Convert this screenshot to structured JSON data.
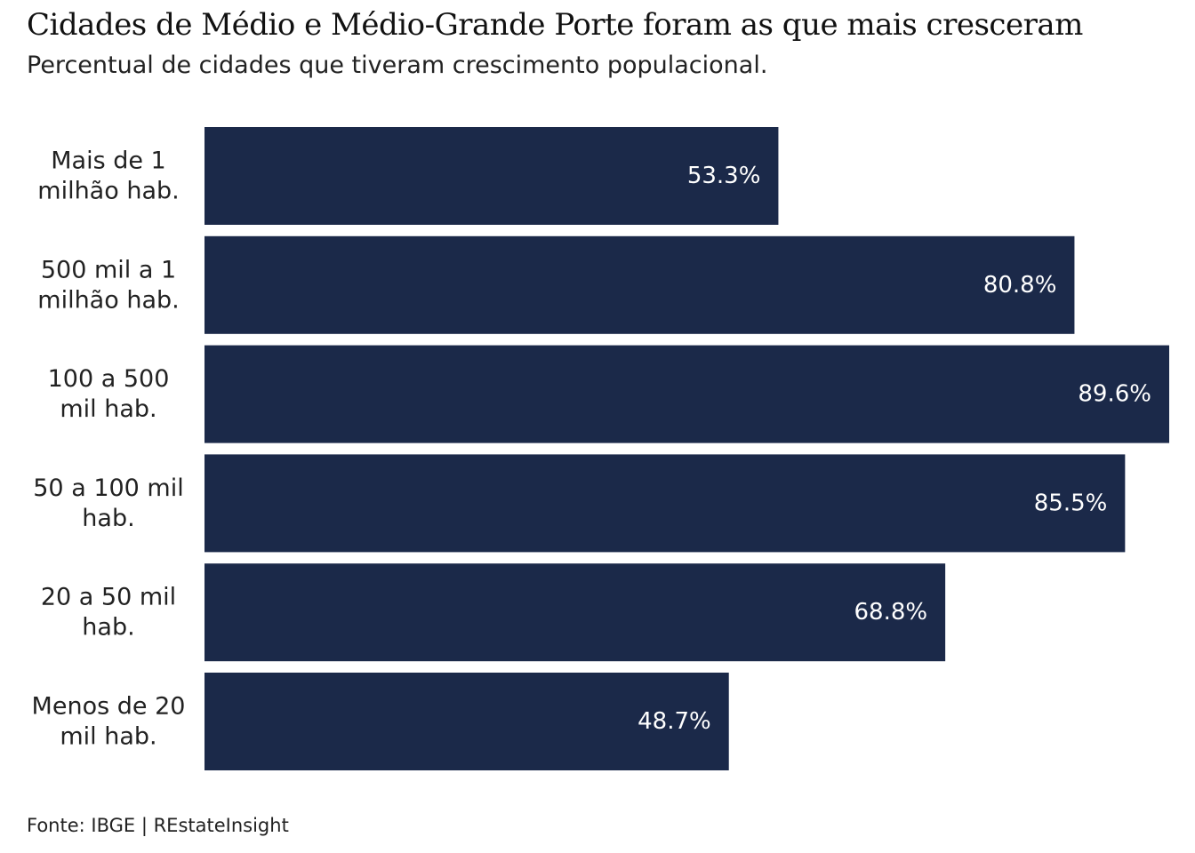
{
  "chart_data": {
    "type": "bar",
    "orientation": "horizontal",
    "title": "Cidades de Médio e Médio-Grande Porte foram as que mais cresceram",
    "subtitle": "Percentual de cidades que tiveram crescimento populacional.",
    "categories": [
      [
        "Mais de 1",
        "milhão hab."
      ],
      [
        "500 mil a 1",
        "milhão hab."
      ],
      [
        "100 a 500",
        "mil hab."
      ],
      [
        "50 a 100 mil",
        "hab."
      ],
      [
        "20 a 50 mil",
        "hab."
      ],
      [
        "Menos de 20",
        "mil hab."
      ]
    ],
    "values": [
      53.3,
      80.8,
      89.6,
      85.5,
      68.8,
      48.7
    ],
    "value_labels": [
      "53.3%",
      "80.8%",
      "89.6%",
      "85.5%",
      "68.8%",
      "48.7%"
    ],
    "xlim": [
      0,
      89.6
    ],
    "grid": false,
    "legend": "none",
    "bar_color": "#1b2949",
    "label_color": "#ffffff",
    "source": "Fonte: IBGE | REstateInsight"
  }
}
